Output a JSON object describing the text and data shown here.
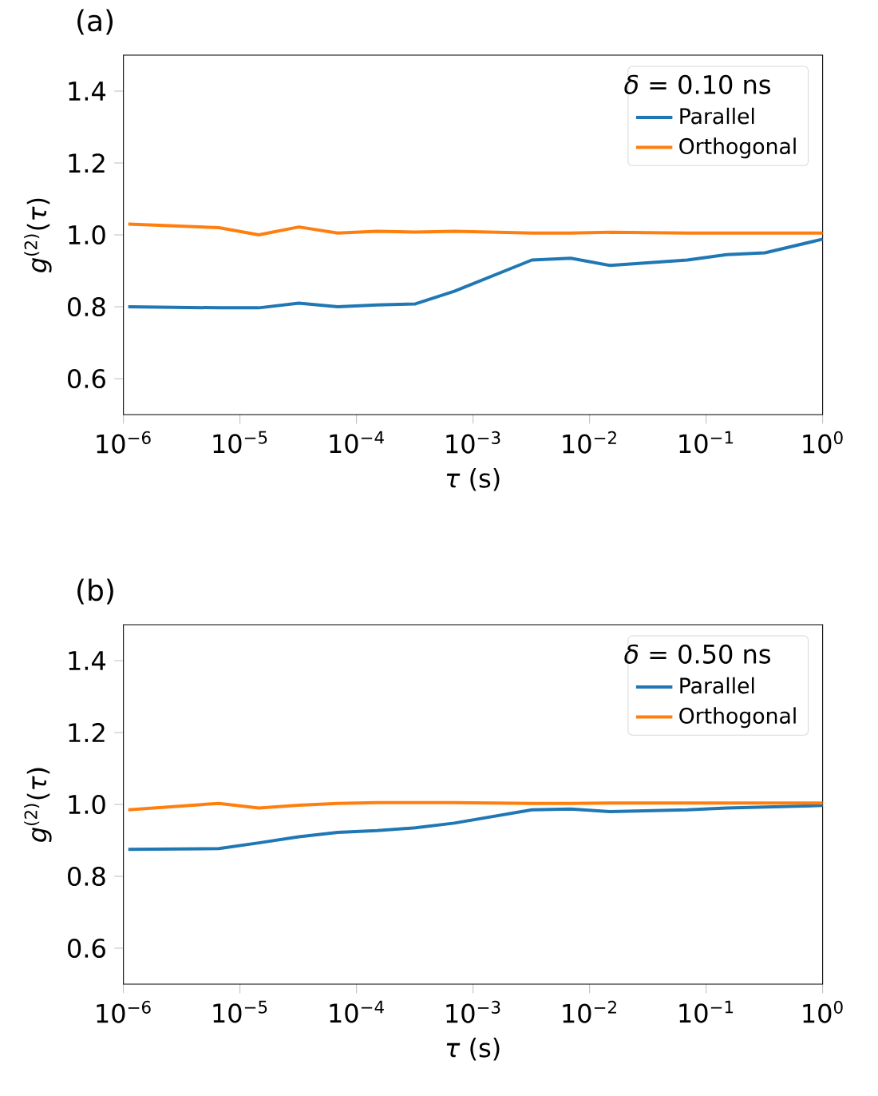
{
  "chart_data": [
    {
      "type": "line",
      "title": "(a)",
      "xlabel": "*τ* (s)",
      "ylabel": "*g*$^{(2)}$(*τ*)",
      "legend_title": "*δ* = 0.10 ns",
      "log": "x",
      "grid": false,
      "legend": "top right",
      "marker": "none",
      "line_style": "solid",
      "x": [
        1.1e-06,
        6.6e-06,
        1.45e-05,
        3.2e-05,
        6.9e-05,
        0.00015,
        0.00032,
        0.00069,
        0.0032,
        0.0069,
        0.015,
        0.069,
        0.15,
        0.32,
        1
      ],
      "xlim": [
        1e-06,
        1
      ],
      "xticks": [
        {
          "value": 1e-06,
          "label": "10$^{−6}$"
        },
        {
          "value": 1e-05,
          "label": "10$^{−5}$"
        },
        {
          "value": 0.0001,
          "label": "10$^{−4}$"
        },
        {
          "value": 0.001,
          "label": "10$^{−3}$"
        },
        {
          "value": 0.01,
          "label": "10$^{−2}$"
        },
        {
          "value": 0.1,
          "label": "10$^{−1}$"
        },
        {
          "value": 1,
          "label": "10$^{0}$"
        }
      ],
      "ylim": [
        0.5,
        1.5
      ],
      "yticks": [
        {
          "value": 0.6,
          "label": "0.6"
        },
        {
          "value": 0.8,
          "label": "0.8"
        },
        {
          "value": 1.0,
          "label": "1.0"
        },
        {
          "value": 1.2,
          "label": "1.2"
        },
        {
          "value": 1.4,
          "label": "1.4"
        }
      ],
      "series": [
        {
          "name": "Parallel",
          "color": "#1f77b4",
          "values": [
            0.8,
            0.797,
            0.797,
            0.81,
            0.8,
            0.805,
            0.808,
            0.843,
            0.93,
            0.935,
            0.915,
            0.93,
            0.945,
            0.95,
            0.988
          ]
        },
        {
          "name": "Orthogonal",
          "color": "#ff7f0e",
          "values": [
            1.03,
            1.02,
            1.0,
            1.022,
            1.005,
            1.01,
            1.008,
            1.01,
            1.005,
            1.005,
            1.007,
            1.005,
            1.005,
            1.005,
            1.005
          ]
        }
      ]
    },
    {
      "type": "line",
      "title": "(b)",
      "xlabel": "*τ* (s)",
      "ylabel": "*g*$^{(2)}$(*τ*)",
      "legend_title": "*δ* = 0.50 ns",
      "log": "x",
      "grid": false,
      "legend": "top right",
      "marker": "none",
      "line_style": "solid",
      "x": [
        1.1e-06,
        6.6e-06,
        1.45e-05,
        3.2e-05,
        6.9e-05,
        0.00015,
        0.00032,
        0.00069,
        0.0032,
        0.0069,
        0.015,
        0.069,
        0.15,
        0.32,
        1
      ],
      "xlim": [
        1e-06,
        1
      ],
      "xticks": [
        {
          "value": 1e-06,
          "label": "10$^{−6}$"
        },
        {
          "value": 1e-05,
          "label": "10$^{−5}$"
        },
        {
          "value": 0.0001,
          "label": "10$^{−4}$"
        },
        {
          "value": 0.001,
          "label": "10$^{−3}$"
        },
        {
          "value": 0.01,
          "label": "10$^{−2}$"
        },
        {
          "value": 0.1,
          "label": "10$^{−1}$"
        },
        {
          "value": 1,
          "label": "10$^{0}$"
        }
      ],
      "ylim": [
        0.5,
        1.5
      ],
      "yticks": [
        {
          "value": 0.6,
          "label": "0.6"
        },
        {
          "value": 0.8,
          "label": "0.8"
        },
        {
          "value": 1.0,
          "label": "1.0"
        },
        {
          "value": 1.2,
          "label": "1.2"
        },
        {
          "value": 1.4,
          "label": "1.4"
        }
      ],
      "series": [
        {
          "name": "Parallel",
          "color": "#1f77b4",
          "values": [
            0.875,
            0.877,
            0.893,
            0.91,
            0.922,
            0.927,
            0.935,
            0.948,
            0.985,
            0.987,
            0.98,
            0.985,
            0.99,
            0.993,
            0.997
          ]
        },
        {
          "name": "Orthogonal",
          "color": "#ff7f0e",
          "values": [
            0.985,
            1.003,
            0.99,
            0.998,
            1.003,
            1.005,
            1.005,
            1.005,
            1.003,
            1.003,
            1.004,
            1.004,
            1.004,
            1.004,
            1.004
          ]
        }
      ]
    }
  ]
}
